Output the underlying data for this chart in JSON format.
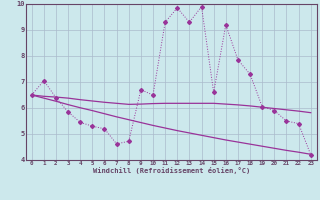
{
  "xlabel": "Windchill (Refroidissement éolien,°C)",
  "background_color": "#cce8ec",
  "grid_color": "#aabbcc",
  "line_color": "#993399",
  "spine_color": "#664466",
  "x_values": [
    0,
    1,
    2,
    3,
    4,
    5,
    6,
    7,
    8,
    9,
    10,
    11,
    12,
    13,
    14,
    15,
    16,
    17,
    18,
    19,
    20,
    21,
    22,
    23
  ],
  "line1": [
    6.5,
    7.05,
    6.4,
    5.85,
    5.45,
    5.3,
    5.2,
    4.62,
    4.72,
    6.7,
    6.5,
    9.3,
    9.85,
    9.3,
    9.9,
    6.6,
    9.2,
    7.85,
    7.3,
    6.05,
    5.9,
    5.5,
    5.4,
    4.2
  ],
  "line2": [
    6.5,
    6.45,
    6.42,
    6.38,
    6.32,
    6.27,
    6.22,
    6.18,
    6.14,
    6.15,
    6.17,
    6.18,
    6.18,
    6.18,
    6.18,
    6.18,
    6.15,
    6.12,
    6.08,
    6.03,
    5.98,
    5.93,
    5.88,
    5.82
  ],
  "line3": [
    6.5,
    6.38,
    6.26,
    6.13,
    6.01,
    5.9,
    5.78,
    5.66,
    5.55,
    5.44,
    5.33,
    5.23,
    5.13,
    5.04,
    4.95,
    4.86,
    4.77,
    4.69,
    4.61,
    4.53,
    4.45,
    4.37,
    4.3,
    4.22
  ],
  "ylim": [
    4.0,
    10.0
  ],
  "xlim_min": -0.5,
  "xlim_max": 23.5,
  "yticks": [
    4,
    5,
    6,
    7,
    8,
    9,
    10
  ],
  "xticks": [
    0,
    1,
    2,
    3,
    4,
    5,
    6,
    7,
    8,
    9,
    10,
    11,
    12,
    13,
    14,
    15,
    16,
    17,
    18,
    19,
    20,
    21,
    22,
    23
  ]
}
